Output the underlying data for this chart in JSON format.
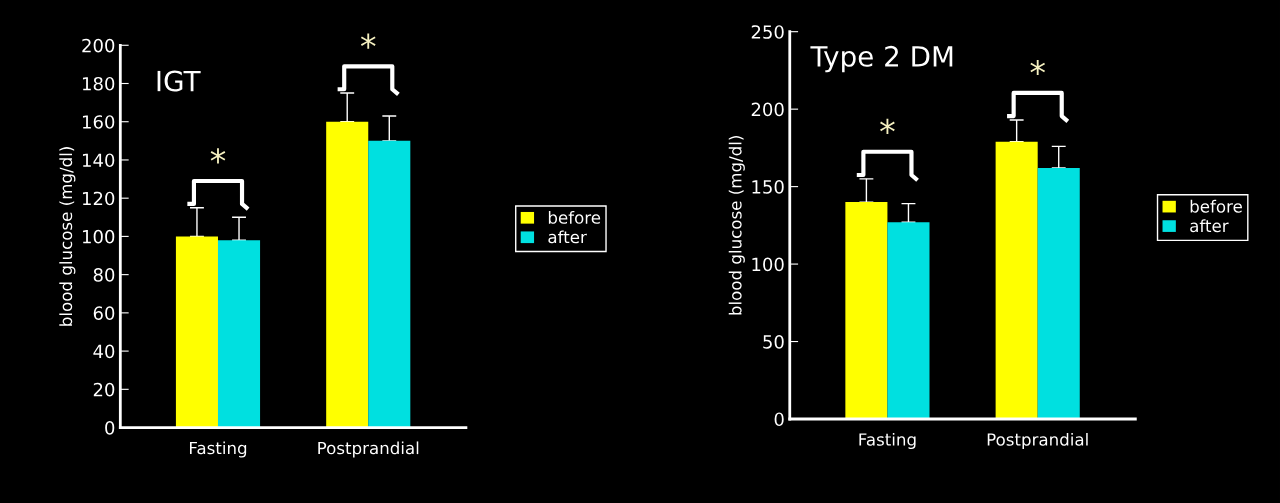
{
  "chart_data": [
    {
      "type": "bar",
      "title": "IGT",
      "ylabel": "blood glucose (mg/dl)",
      "categories": [
        "Fasting",
        "Postprandial"
      ],
      "series": [
        {
          "name": "before",
          "color": "#ffff00",
          "values": [
            100,
            160
          ],
          "errors": [
            15,
            15
          ]
        },
        {
          "name": "after",
          "color": "#00e0e0",
          "values": [
            98,
            150
          ],
          "errors": [
            12,
            13
          ]
        }
      ],
      "ylim": [
        0,
        200
      ],
      "yticks": [
        0,
        20,
        40,
        60,
        80,
        100,
        120,
        140,
        160,
        180,
        200
      ],
      "legend": "right",
      "grid": false,
      "annotations": [
        "*",
        "*"
      ]
    },
    {
      "type": "bar",
      "title": "Type 2 DM",
      "ylabel": "blood glucose (mg/dl)",
      "categories": [
        "Fasting",
        "Postprandial"
      ],
      "series": [
        {
          "name": "before",
          "color": "#ffff00",
          "values": [
            140,
            179
          ],
          "errors": [
            15,
            14
          ]
        },
        {
          "name": "after",
          "color": "#00e0e0",
          "values": [
            127,
            162
          ],
          "errors": [
            12,
            14
          ]
        }
      ],
      "ylim": [
        0,
        250
      ],
      "yticks": [
        0,
        50,
        100,
        150,
        200,
        250
      ],
      "legend": "right",
      "grid": false,
      "annotations": [
        "*",
        "*"
      ]
    }
  ]
}
